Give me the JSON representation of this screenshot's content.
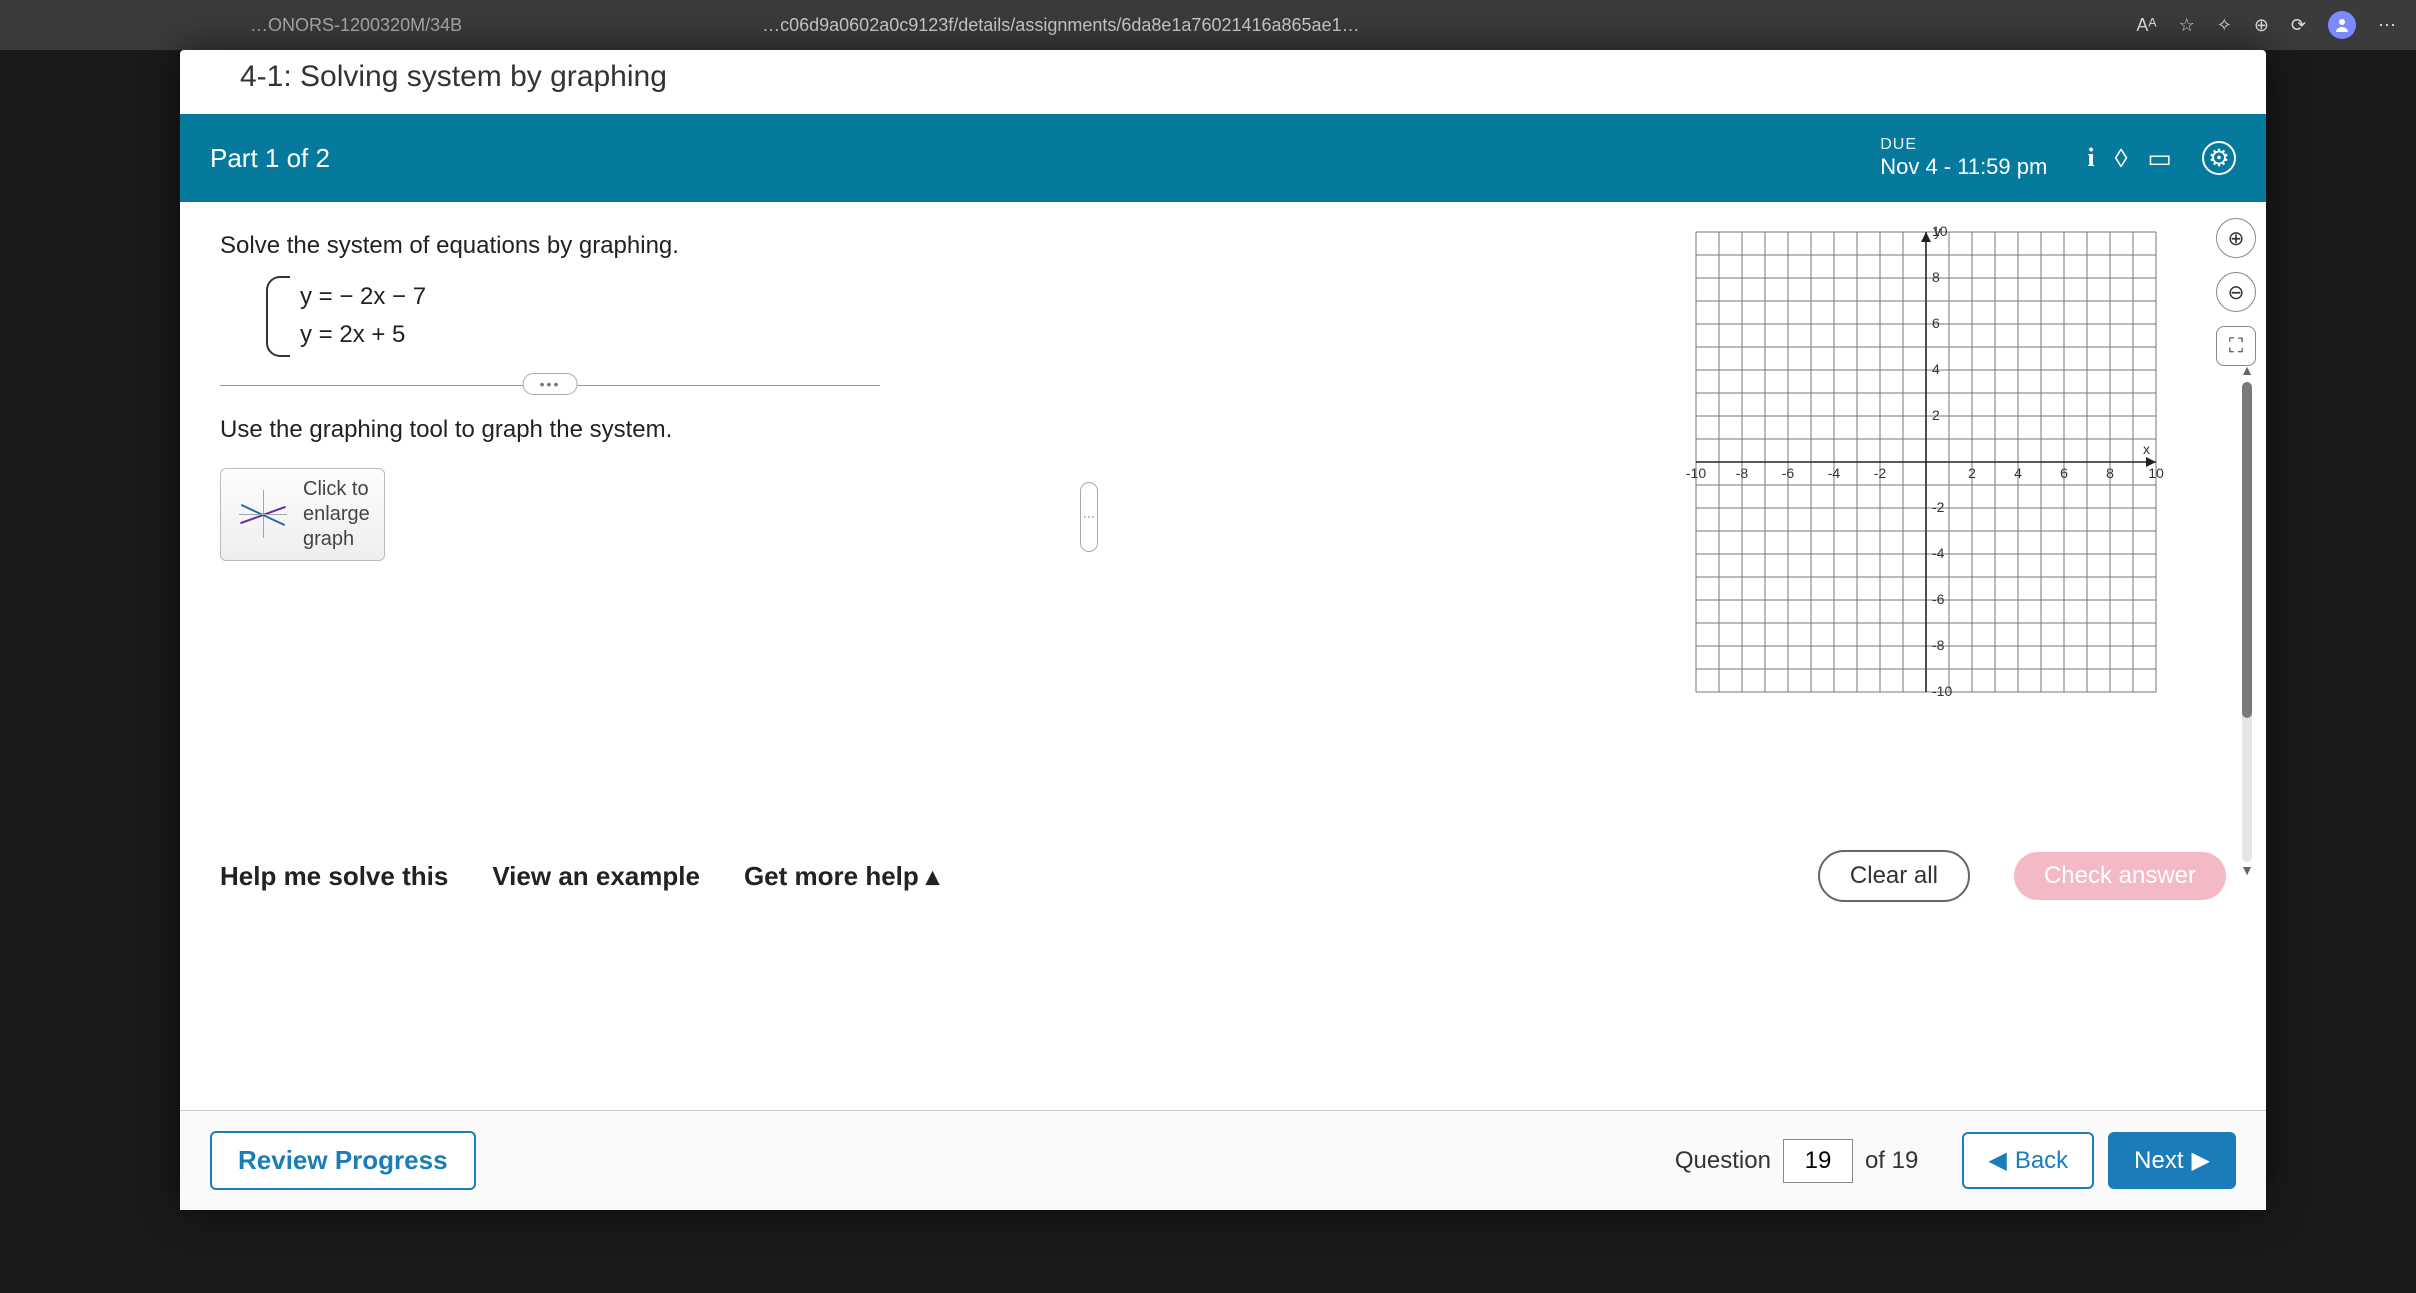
{
  "browser": {
    "url_left_frag": "…ONORS-1200320M/34B",
    "url_mid_frag": "…c06d9a0602a0c9123f/details/assignments/6da8e1a76021416a865ae1…",
    "text_size_icon": "Aᴬ"
  },
  "header": {
    "assignment_title": "4-1: Solving system by graphing",
    "part_label": "Part 1 of 2",
    "due_label": "DUE",
    "due_value": "Nov 4 - 11:59 pm"
  },
  "problem": {
    "prompt": "Solve the system of equations by graphing.",
    "eq1": "y = − 2x − 7",
    "eq2": "y = 2x + 5",
    "instruction": "Use the graphing tool to graph the system.",
    "enlarge_label": "Click to\nenlarge\ngraph"
  },
  "graph": {
    "xlim": [
      -10,
      10
    ],
    "ylim": [
      -10,
      10
    ],
    "tick_step": 2,
    "grid_step": 1,
    "x_label": "x",
    "y_label": "y",
    "grid_color": "#777777",
    "axis_color": "#222222",
    "background_color": "#ffffff"
  },
  "help": {
    "solve": "Help me solve this",
    "example": "View an example",
    "more": "Get more help ▴",
    "clear": "Clear all",
    "check": "Check answer"
  },
  "footer": {
    "review": "Review Progress",
    "question_label": "Question",
    "current": "19",
    "total_label": "of 19",
    "back": "Back",
    "next": "Next"
  }
}
